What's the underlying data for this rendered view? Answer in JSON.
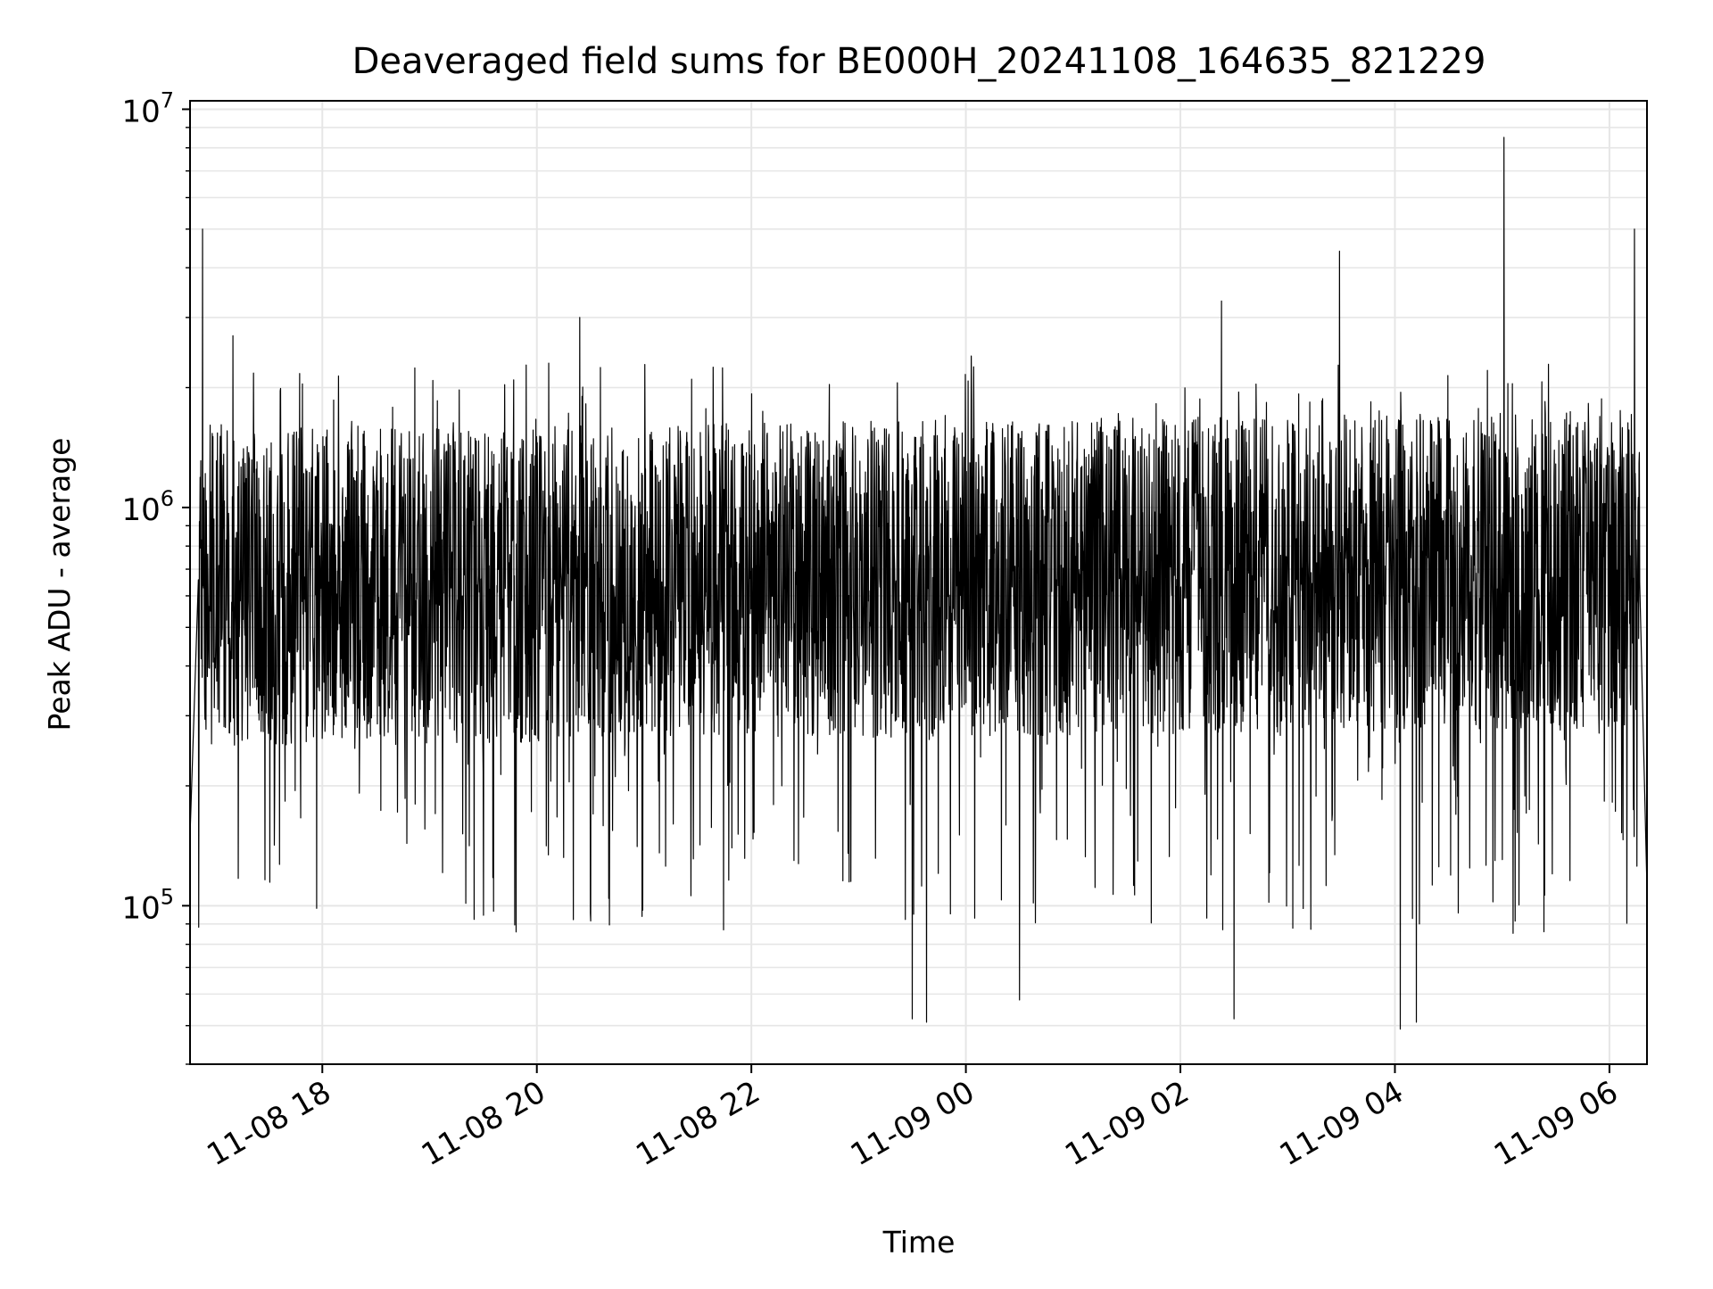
{
  "chart_data": {
    "type": "line",
    "title": "Deaveraged field sums for BE000H_20241108_164635_821229",
    "xlabel": "Time",
    "ylabel": "Peak ADU - average",
    "yscale": "log",
    "ylim": [
      40000,
      10500000
    ],
    "xlim": [
      "2024-11-08 16:46",
      "2024-11-09 06:21"
    ],
    "y_tick_labels": [
      {
        "value": 100000,
        "base": "10",
        "exp": "5"
      },
      {
        "value": 1000000,
        "base": "10",
        "exp": "6"
      },
      {
        "value": 10000000,
        "base": "10",
        "exp": "7"
      }
    ],
    "x_tick_labels": [
      {
        "time": "2024-11-08 18:00",
        "label": "11-08 18"
      },
      {
        "time": "2024-11-08 20:00",
        "label": "11-08 20"
      },
      {
        "time": "2024-11-08 22:00",
        "label": "11-08 22"
      },
      {
        "time": "2024-11-09 00:00",
        "label": "11-09 00"
      },
      {
        "time": "2024-11-09 02:00",
        "label": "11-09 02"
      },
      {
        "time": "2024-11-09 04:00",
        "label": "11-09 04"
      },
      {
        "time": "2024-11-09 06:00",
        "label": "11-09 06"
      }
    ],
    "grid": true,
    "line_color": "#000000",
    "grid_color": "#e6e6e6",
    "series": [
      {
        "values_note_free": true,
        "x": [
          "2024-11-08 16:46",
          "2024-11-08 16:48",
          "2024-11-08 16:52",
          "2024-11-08 16:56",
          "2024-11-08 17:04",
          "2024-11-08 17:12",
          "2024-11-08 17:20",
          "2024-11-08 17:30",
          "2024-11-08 17:36",
          "2024-11-08 17:45",
          "2024-11-08 18:00",
          "2024-11-08 18:30",
          "2024-11-08 19:00",
          "2024-11-08 19:30",
          "2024-11-08 20:00",
          "2024-11-08 20:20",
          "2024-11-08 20:40",
          "2024-11-08 21:00",
          "2024-11-08 21:30",
          "2024-11-08 22:00",
          "2024-11-08 22:30",
          "2024-11-08 23:00",
          "2024-11-08 23:20",
          "2024-11-08 23:40",
          "2024-11-09 00:00",
          "2024-11-09 00:30",
          "2024-11-09 01:00",
          "2024-11-09 01:30",
          "2024-11-09 02:00",
          "2024-11-09 02:30",
          "2024-11-09 03:00",
          "2024-11-09 03:30",
          "2024-11-09 04:00",
          "2024-11-09 04:30",
          "2024-11-09 05:00",
          "2024-11-09 05:30",
          "2024-11-09 06:00",
          "2024-11-09 06:10",
          "2024-11-09 06:21"
        ],
        "values": [
          150000,
          700000,
          5000000,
          800000,
          700000,
          1000000,
          700000,
          600000,
          600000,
          500000,
          600000,
          600000,
          600000,
          600000,
          650000,
          3000000,
          700000,
          700000,
          700000,
          650000,
          650000,
          500000,
          450000,
          500000,
          2400000,
          600000,
          700000,
          700000,
          700000,
          3300000,
          750000,
          4400000,
          600000,
          700000,
          8500000,
          700000,
          650000,
          5000000,
          110000
        ],
        "typical_band": [
          300000,
          1300000
        ],
        "peaks": [
          {
            "time": "2024-11-08 16:53",
            "value": 5000000
          },
          {
            "time": "2024-11-08 17:10",
            "value": 2700000
          },
          {
            "time": "2024-11-08 20:24",
            "value": 3000000
          },
          {
            "time": "2024-11-09 00:03",
            "value": 2400000
          },
          {
            "time": "2024-11-09 02:23",
            "value": 3300000
          },
          {
            "time": "2024-11-09 03:29",
            "value": 4400000
          },
          {
            "time": "2024-11-09 05:01",
            "value": 8500000
          },
          {
            "time": "2024-11-09 06:14",
            "value": 5000000
          }
        ],
        "troughs": [
          {
            "time": "2024-11-08 23:30",
            "value": 52000
          },
          {
            "time": "2024-11-08 23:38",
            "value": 51000
          },
          {
            "time": "2024-11-09 00:30",
            "value": 58000
          },
          {
            "time": "2024-11-09 02:30",
            "value": 52000
          },
          {
            "time": "2024-11-09 04:03",
            "value": 49000
          },
          {
            "time": "2024-11-09 04:12",
            "value": 51000
          }
        ]
      }
    ]
  }
}
